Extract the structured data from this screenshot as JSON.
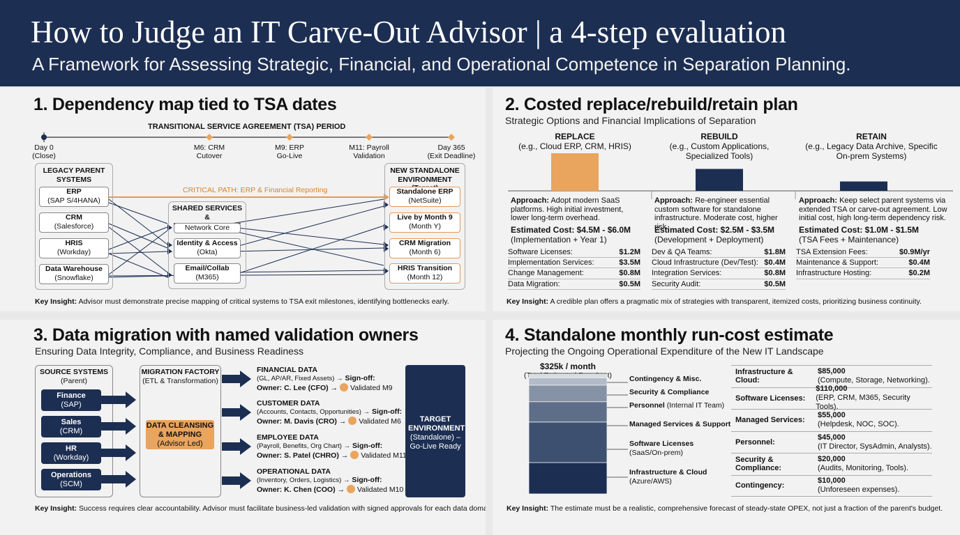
{
  "header": {
    "title": "How to Judge an IT Carve-Out Advisor | a 4-step evaluation",
    "subtitle": "A Framework for Assessing Strategic, Financial, and Operational Competence in Separation Planning."
  },
  "colors": {
    "navy": "#1c2e52",
    "orange": "#e9a45e",
    "orange_line": "#e29a58",
    "background": "#f2f2f2"
  },
  "panel1": {
    "title": "1. Dependency map tied to TSA dates",
    "tsa_label": "TRANSITIONAL SERVICE AGREEMENT (TSA) PERIOD",
    "milestones": [
      {
        "line1": "Day 0",
        "line2": "(Close)"
      },
      {
        "line1": "M6: CRM",
        "line2": "Cutover"
      },
      {
        "line1": "M9: ERP",
        "line2": "Go-Live"
      },
      {
        "line1": "M11: Payroll",
        "line2": "Validation"
      },
      {
        "line1": "Day 365",
        "line2": "(Exit Deadline)"
      }
    ],
    "legacy": {
      "title": "LEGACY PARENT SYSTEMS",
      "items": [
        {
          "name": "ERP",
          "sub": "(SAP S/4HANA)"
        },
        {
          "name": "CRM",
          "sub": "(Salesforce)"
        },
        {
          "name": "HRIS",
          "sub": "(Workday)"
        },
        {
          "name": "Data Warehouse",
          "sub": "(Snowflake)"
        }
      ]
    },
    "critical_path": "CRITICAL PATH: ERP & Financial Reporting",
    "shared": {
      "title": "SHARED SERVICES & INFRASTRUCTURE",
      "items": [
        {
          "name": "Network Core",
          "sub": ""
        },
        {
          "name": "Identity & Access",
          "sub": "(Okta)"
        },
        {
          "name": "Email/Collab",
          "sub": "(M365)"
        }
      ]
    },
    "target": {
      "title": "NEW STANDALONE ENVIRONMENT (Target)",
      "items": [
        {
          "name": "Standalone ERP",
          "sub": "(NetSuite)"
        },
        {
          "name": "Live by Month 9",
          "sub": "(Month Y)"
        },
        {
          "name": "CRM Migration",
          "sub": "(Month 6)"
        },
        {
          "name": "HRIS Transition",
          "sub": "(Month 12)"
        }
      ]
    },
    "insight_label": "Key Insight:",
    "insight": "Advisor must demonstrate precise mapping of critical systems to TSA exit milestones, identifying bottlenecks early."
  },
  "panel2": {
    "title": "2. Costed replace/rebuild/retain plan",
    "subtitle": "Strategic Options and Financial Implications of Separation",
    "chart_data": {
      "type": "bar",
      "categories": [
        "REPLACE",
        "REBUILD",
        "RETAIN"
      ],
      "values": [
        6.0,
        3.5,
        1.5
      ],
      "colors": [
        "#e9a45e",
        "#1c2e52",
        "#1c2e52"
      ],
      "title": "",
      "xlabel": "",
      "ylabel": ""
    },
    "options": [
      {
        "name": "REPLACE",
        "example": "(e.g., Cloud ERP, CRM, HRIS)",
        "approach_label": "Approach:",
        "approach": "Adopt modern SaaS platforms. High initial investment, lower long-term overhead.",
        "cost": "Estimated Cost: $4.5M - $6.0M",
        "cost_note": "(Implementation + Year 1)",
        "items": [
          {
            "k": "Software Licenses:",
            "v": "$1.2M"
          },
          {
            "k": "Implementation Services:",
            "v": "$3.5M"
          },
          {
            "k": "Change Management:",
            "v": "$0.8M"
          },
          {
            "k": "Data Migration:",
            "v": "$0.5M"
          }
        ]
      },
      {
        "name": "REBUILD",
        "example": "(e.g., Custom Applications, Specialized Tools)",
        "approach_label": "Approach:",
        "approach": "Re-engineer essential custom software for standalone infrastructure. Moderate cost, higher risk.",
        "cost": "Estimated Cost: $2.5M - $3.5M",
        "cost_note": "(Development + Deployment)",
        "items": [
          {
            "k": "Dev & QA Teams:",
            "v": "$1.8M"
          },
          {
            "k": "Cloud Infrastructure (Dev/Test):",
            "v": "$0.4M"
          },
          {
            "k": "Integration Services:",
            "v": "$0.8M"
          },
          {
            "k": "Security Audit:",
            "v": "$0.5M"
          }
        ]
      },
      {
        "name": "RETAIN",
        "example": "(e.g., Legacy Data Archive, Specific On-prem Systems)",
        "approach_label": "Approach:",
        "approach": "Keep select parent systems via extended TSA or carve-out agreement. Low initial cost, high long-term dependency risk.",
        "cost": "Estimated Cost: $1.0M - $1.5M",
        "cost_note": "(TSA Fees + Maintenance)",
        "items": [
          {
            "k": "TSA Extension Fees:",
            "v": "$0.9M/yr"
          },
          {
            "k": "Maintenance & Support:",
            "v": "$0.4M"
          },
          {
            "k": "Infrastructure Hosting:",
            "v": "$0.2M"
          }
        ]
      }
    ],
    "insight_label": "Key Insight:",
    "insight": "A credible plan offers a pragmatic mix of strategies with transparent, itemized costs, prioritizing business continuity."
  },
  "panel3": {
    "title": "3. Data migration with named validation owners",
    "subtitle": "Ensuring Data Integrity, Compliance, and Business Readiness",
    "source": {
      "title": "SOURCE SYSTEMS",
      "title2": "(Parent)",
      "items": [
        {
          "name": "Finance",
          "sub": "(SAP)"
        },
        {
          "name": "Sales",
          "sub": "(CRM)"
        },
        {
          "name": "HR",
          "sub": "(Workday)"
        },
        {
          "name": "Operations",
          "sub": "(SCM)"
        }
      ]
    },
    "factory": {
      "title": "MIGRATION FACTORY",
      "title2": "(ETL & Transformation)",
      "box": "DATA CLEANSING & MAPPING",
      "box_sub": "(Advisor Led)"
    },
    "domains": [
      {
        "name": "FINANCIAL DATA",
        "detail": "(GL, AP/AR, Fixed Assets) →",
        "signoff": "Sign-off:",
        "owner": "Owner: C. Lee (CFO) →",
        "validated": "Validated M9"
      },
      {
        "name": "CUSTOMER DATA",
        "detail": "(Accounts, Contacts, Opportunities) →",
        "signoff": "Sign-off:",
        "owner": "Owner: M. Davis (CRO) →",
        "validated": "Validated M6"
      },
      {
        "name": "EMPLOYEE DATA",
        "detail": "(Payroll, Benefits, Org Chart) →",
        "signoff": "Sign-off:",
        "owner": "Owner: S. Patel (CHRO) →",
        "validated": "Validated M11"
      },
      {
        "name": "OPERATIONAL DATA",
        "detail": "(Inventory, Orders, Logistics) →",
        "signoff": "Sign-off:",
        "owner": "Owner: K. Chen (COO) →",
        "validated": "Validated M10"
      }
    ],
    "target": {
      "title": "TARGET ENVIRONMENT",
      "sub": "(Standalone) – Go-Live Ready"
    },
    "insight_label": "Key Insight:",
    "insight": "Success requires clear accountability. Advisor must facilitate business-led validation with signed approvals for each data domain."
  },
  "panel4": {
    "title": "4. Standalone monthly run-cost estimate",
    "subtitle": "Projecting the Ongoing Operational Expenditure of the New IT Landscape",
    "total": "$325k / month",
    "total_note": "(Total Estimated Run-Cost)",
    "chart_data": {
      "type": "bar",
      "stacked": true,
      "categories": [
        "Monthly run-cost"
      ],
      "series": [
        {
          "name": "Infrastructure & Cloud (Azure/AWS)",
          "values": [
            85
          ],
          "color": "#1c2e52"
        },
        {
          "name": "Software Licenses (SaaS/On-prem)",
          "values": [
            110
          ],
          "color": "#3e5070"
        },
        {
          "name": "Managed Services & Support",
          "values": [
            55
          ],
          "color": "#5e6e89"
        },
        {
          "name": "Personnel (Internal IT Team)",
          "values": [
            45
          ],
          "color": "#8692a6"
        },
        {
          "name": "Security & Compliance",
          "values": [
            20
          ],
          "color": "#b3bbc8"
        },
        {
          "name": "Contingency & Misc.",
          "values": [
            10
          ],
          "color": "#d7dbe2"
        }
      ],
      "total": 325,
      "unit": "$k / month"
    },
    "labels": [
      {
        "bold": "Contingency & Misc.",
        "rest": ""
      },
      {
        "bold": "Security & Compliance",
        "rest": ""
      },
      {
        "bold": "Personnel",
        "rest": " (Internal IT Team)"
      },
      {
        "bold": "Managed Services & Support",
        "rest": ""
      },
      {
        "bold": "Software Licenses",
        "rest": "(SaaS/On-prem)"
      },
      {
        "bold": "Infrastructure & Cloud",
        "rest": "(Azure/AWS)"
      }
    ],
    "table": [
      {
        "k": "Infrastructure & Cloud:",
        "v": "$85,000",
        "d": "(Compute, Storage, Networking)."
      },
      {
        "k": "Software Licenses:",
        "v": "$110,000",
        "d": "(ERP, CRM, M365, Security Tools)."
      },
      {
        "k": "Managed Services:",
        "v": "$55,000",
        "d": "(Helpdesk, NOC, SOC)."
      },
      {
        "k": "Personnel:",
        "v": "$45,000",
        "d": "(IT Director, SysAdmin, Analysts)."
      },
      {
        "k": "Security & Compliance:",
        "v": "$20,000",
        "d": "(Audits, Monitoring, Tools)."
      },
      {
        "k": "Contingency:",
        "v": "$10,000",
        "d": "(Unforeseen expenses)."
      }
    ],
    "insight_label": "Key Insight:",
    "insight": "The estimate must be a realistic, comprehensive forecast of steady-state OPEX, not just a fraction of the parent's budget."
  }
}
